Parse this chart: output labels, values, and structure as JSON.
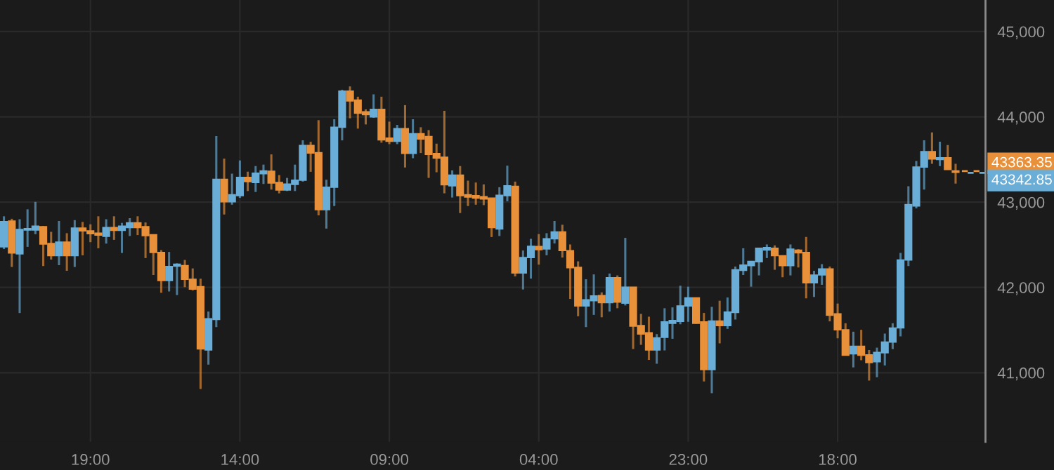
{
  "chart_data": {
    "type": "candlestick",
    "categories": [
      null,
      null,
      null,
      null,
      null,
      null,
      null,
      null,
      null,
      null,
      null,
      "19:00",
      null,
      null,
      null,
      null,
      null,
      null,
      null,
      null,
      null,
      null,
      null,
      null,
      null,
      null,
      null,
      null,
      null,
      null,
      "14:00",
      null,
      null,
      null,
      null,
      null,
      null,
      null,
      null,
      null,
      null,
      null,
      null,
      null,
      null,
      null,
      null,
      null,
      null,
      "09:00",
      null,
      null,
      null,
      null,
      null,
      null,
      null,
      null,
      null,
      null,
      null,
      null,
      null,
      null,
      null,
      null,
      null,
      null,
      "04:00",
      null,
      null,
      null,
      null,
      null,
      null,
      null,
      null,
      null,
      null,
      null,
      null,
      null,
      null,
      null,
      null,
      null,
      null,
      "23:00",
      null,
      null,
      null,
      null,
      null,
      null,
      null,
      null,
      null,
      null,
      null,
      null,
      null,
      null,
      null,
      null,
      null,
      null,
      "18:00",
      null,
      null,
      null,
      null,
      null,
      null,
      null,
      null,
      null,
      null,
      null,
      null,
      null,
      null,
      null
    ],
    "ohlc": [
      [
        42476,
        42834,
        42450,
        42773
      ],
      [
        42779,
        42805,
        42240,
        42404
      ],
      [
        42393,
        42800,
        41700,
        42680
      ],
      [
        42673,
        42916,
        42476,
        42690
      ],
      [
        42672,
        43003,
        42624,
        42718
      ],
      [
        42713,
        42720,
        42251,
        42508
      ],
      [
        42515,
        42652,
        42327,
        42372
      ],
      [
        42372,
        42779,
        42261,
        42531
      ],
      [
        42531,
        42636,
        42195,
        42372
      ],
      [
        42372,
        42789,
        42240,
        42696
      ],
      [
        42696,
        42768,
        42376,
        42663
      ],
      [
        42663,
        42740,
        42531,
        42630
      ],
      [
        42636,
        42834,
        42459,
        42614
      ],
      [
        42598,
        42800,
        42514,
        42702
      ],
      [
        42702,
        42834,
        42558,
        42669
      ],
      [
        42669,
        42757,
        42404,
        42718
      ],
      [
        42702,
        42812,
        42603,
        42757
      ],
      [
        42757,
        42834,
        42614,
        42702
      ],
      [
        42713,
        42762,
        42344,
        42607
      ],
      [
        42619,
        42620,
        42146,
        42410
      ],
      [
        42410,
        42437,
        41937,
        42080
      ],
      [
        42080,
        42416,
        41953,
        42245
      ],
      [
        42250,
        42283,
        41910,
        42272
      ],
      [
        42256,
        42322,
        42004,
        42096
      ],
      [
        42096,
        42223,
        41964,
        41980
      ],
      [
        42009,
        42102,
        40809,
        41278
      ],
      [
        41266,
        41717,
        41096,
        41634
      ],
      [
        41624,
        43774,
        41535,
        43268
      ],
      [
        43268,
        43510,
        42855,
        43004
      ],
      [
        43004,
        43334,
        42970,
        43086
      ],
      [
        43076,
        43489,
        43050,
        43290
      ],
      [
        43290,
        43357,
        43130,
        43241
      ],
      [
        43230,
        43423,
        43119,
        43340
      ],
      [
        43334,
        43440,
        43213,
        43367
      ],
      [
        43362,
        43560,
        43147,
        43225
      ],
      [
        43230,
        43317,
        43103,
        43142
      ],
      [
        43142,
        43284,
        43130,
        43213
      ],
      [
        43208,
        43440,
        43130,
        43257
      ],
      [
        43257,
        43725,
        43240,
        43664
      ],
      [
        43664,
        43708,
        43356,
        43576
      ],
      [
        43581,
        43961,
        42845,
        42911
      ],
      [
        42911,
        43263,
        42690,
        43175
      ],
      [
        43175,
        43972,
        42954,
        43878
      ],
      [
        43878,
        44318,
        43724,
        44302
      ],
      [
        44302,
        44357,
        43983,
        44187
      ],
      [
        44198,
        44236,
        43862,
        44043
      ],
      [
        44060,
        44088,
        43911,
        44026
      ],
      [
        43999,
        44264,
        43988,
        44088
      ],
      [
        44088,
        44236,
        43697,
        43730
      ],
      [
        43752,
        43944,
        43680,
        43713
      ],
      [
        43713,
        43906,
        43680,
        43862
      ],
      [
        43862,
        44137,
        43406,
        43571
      ],
      [
        43571,
        43972,
        43515,
        43802
      ],
      [
        43802,
        43878,
        43576,
        43741
      ],
      [
        43769,
        43845,
        43284,
        43560
      ],
      [
        43571,
        43686,
        43350,
        43515
      ],
      [
        43527,
        44071,
        43103,
        43203
      ],
      [
        43192,
        43373,
        43054,
        43317
      ],
      [
        43317,
        43423,
        42872,
        43076
      ],
      [
        43087,
        43252,
        42954,
        43060
      ],
      [
        43076,
        43230,
        42970,
        43048
      ],
      [
        43065,
        43208,
        42965,
        43037
      ],
      [
        43048,
        43048,
        42591,
        42702
      ],
      [
        42685,
        43175,
        42603,
        43081
      ],
      [
        43076,
        43428,
        43010,
        43192
      ],
      [
        43186,
        43241,
        42129,
        42170
      ],
      [
        42170,
        42433,
        41976,
        42351
      ],
      [
        42351,
        42570,
        42103,
        42483
      ],
      [
        42480,
        42625,
        42267,
        42443
      ],
      [
        42450,
        42636,
        42377,
        42570
      ],
      [
        42570,
        42779,
        42515,
        42652
      ],
      [
        42652,
        42735,
        42350,
        42432
      ],
      [
        42432,
        42504,
        41865,
        42230
      ],
      [
        42235,
        42306,
        41662,
        41783
      ],
      [
        41783,
        42096,
        41535,
        41855
      ],
      [
        41844,
        42153,
        41678,
        41900
      ],
      [
        41905,
        41942,
        41650,
        41822
      ],
      [
        41822,
        42163,
        41717,
        42114
      ],
      [
        42114,
        42141,
        41756,
        41827
      ],
      [
        41816,
        42581,
        41789,
        42004
      ],
      [
        42004,
        42004,
        41278,
        41547
      ],
      [
        41552,
        41690,
        41327,
        41453
      ],
      [
        41469,
        41657,
        41151,
        41266
      ],
      [
        41266,
        41453,
        41106,
        41409
      ],
      [
        41414,
        41756,
        41261,
        41596
      ],
      [
        41580,
        41766,
        41398,
        41613
      ],
      [
        41602,
        42020,
        41568,
        41783
      ],
      [
        41783,
        42009,
        41597,
        41877
      ],
      [
        41877,
        41877,
        41575,
        41580
      ],
      [
        41597,
        41701,
        40898,
        41036
      ],
      [
        41036,
        41772,
        40760,
        41607
      ],
      [
        41607,
        41844,
        41344,
        41552
      ],
      [
        41552,
        41882,
        41514,
        41712
      ],
      [
        41706,
        42245,
        41624,
        42207
      ],
      [
        42200,
        42459,
        42146,
        42262
      ],
      [
        42256,
        42311,
        42009,
        42306
      ],
      [
        42300,
        42460,
        42141,
        42460
      ],
      [
        42438,
        42504,
        42344,
        42467
      ],
      [
        42460,
        42493,
        42207,
        42372
      ],
      [
        42372,
        42372,
        42119,
        42256
      ],
      [
        42256,
        42504,
        42141,
        42449
      ],
      [
        42438,
        42449,
        42234,
        42405
      ],
      [
        42410,
        42592,
        41872,
        42053
      ],
      [
        42053,
        42195,
        41888,
        42146
      ],
      [
        42146,
        42273,
        42031,
        42218
      ],
      [
        42218,
        42245,
        41602,
        41674
      ],
      [
        41690,
        41811,
        41404,
        41503
      ],
      [
        41503,
        41580,
        41205,
        41205
      ],
      [
        41222,
        41481,
        41063,
        41310
      ],
      [
        41310,
        41503,
        41146,
        41205
      ],
      [
        41210,
        41266,
        40907,
        41118
      ],
      [
        41129,
        41294,
        40948,
        41238
      ],
      [
        41233,
        41459,
        41085,
        41360
      ],
      [
        41360,
        41580,
        41277,
        41525
      ],
      [
        41525,
        42404,
        41426,
        42322
      ],
      [
        42322,
        43186,
        42251,
        42971
      ],
      [
        42954,
        43482,
        42927,
        43411
      ],
      [
        43411,
        43725,
        43147,
        43593
      ],
      [
        43593,
        43818,
        43450,
        43505
      ],
      [
        43499,
        43708,
        43422,
        43521
      ],
      [
        43521,
        43670,
        43383,
        43383
      ],
      [
        43366,
        43450,
        43218,
        43350
      ]
    ],
    "ylim": [
      40190,
      45370
    ],
    "yticks": [
      {
        "value": 41000,
        "label": "41,000"
      },
      {
        "value": 42000,
        "label": "42,000"
      },
      {
        "value": 43000,
        "label": "43,000"
      },
      {
        "value": 44000,
        "label": "44,000"
      },
      {
        "value": 45000,
        "label": "45,000"
      }
    ],
    "grid": true,
    "ref_lines": [
      {
        "axis": "y",
        "value": 43363.35,
        "label": "43363.35",
        "color": "#e8913a",
        "line_style": "dashed"
      },
      {
        "axis": "y",
        "value": 43342.85,
        "label": "43342.85",
        "color": "#6aaed8",
        "line_style": "dashed"
      }
    ]
  }
}
